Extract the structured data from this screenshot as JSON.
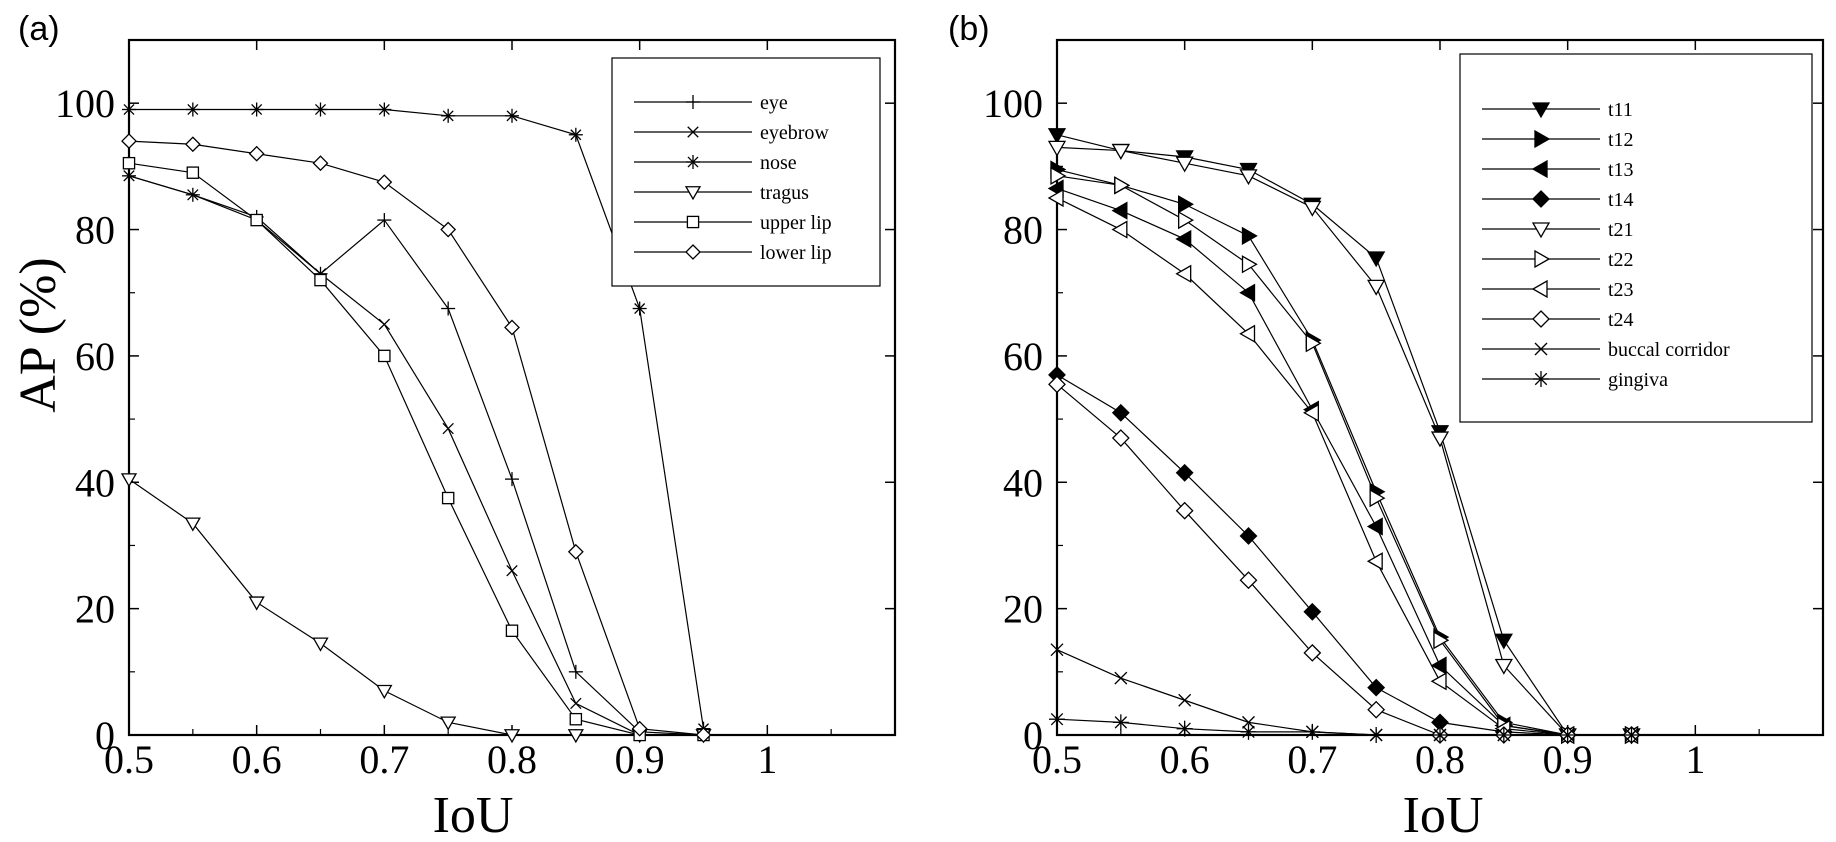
{
  "chart_data": [
    {
      "type": "line",
      "panel_label": "(a)",
      "xlabel": "IoU",
      "ylabel": "AP (%)",
      "xlim": [
        0.5,
        1.1
      ],
      "ylim": [
        0,
        110
      ],
      "xticks": [
        0.5,
        0.6,
        0.7,
        0.8,
        0.9,
        1
      ],
      "xtick_labels": [
        "0.5",
        "0.6",
        "0.7",
        "0.8",
        "0.9",
        "1"
      ],
      "yticks": [
        0,
        20,
        40,
        60,
        80,
        100
      ],
      "ytick_labels": [
        "0",
        "20",
        "40",
        "60",
        "80",
        "100"
      ],
      "legend_position": "top-right",
      "x": [
        0.5,
        0.55,
        0.6,
        0.65,
        0.7,
        0.75,
        0.8,
        0.85,
        0.9,
        0.95
      ],
      "series": [
        {
          "name": "eye",
          "marker": "plus",
          "values": [
            88.5,
            85.5,
            82,
            73,
            81.5,
            67.5,
            40.5,
            10,
            0.5,
            0
          ]
        },
        {
          "name": "eyebrow",
          "marker": "x",
          "values": [
            88.5,
            85.5,
            81.5,
            73,
            65,
            48.5,
            26,
            5,
            0,
            0
          ]
        },
        {
          "name": "nose",
          "marker": "asterisk",
          "values": [
            99,
            99,
            99,
            99,
            99,
            98,
            98,
            95,
            67.5,
            1
          ]
        },
        {
          "name": "tragus",
          "marker": "triangle-down-open",
          "values": [
            40.5,
            33.5,
            21,
            14.5,
            7,
            2,
            0,
            0,
            0,
            0
          ]
        },
        {
          "name": "upper lip",
          "marker": "square-open",
          "values": [
            90.5,
            89,
            81.5,
            72,
            60,
            37.5,
            16.5,
            2.5,
            0,
            0
          ]
        },
        {
          "name": "lower lip",
          "marker": "diamond-open",
          "values": [
            94,
            93.5,
            92,
            90.5,
            87.5,
            80,
            64.5,
            29,
            1,
            0
          ]
        }
      ]
    },
    {
      "type": "line",
      "panel_label": "(b)",
      "xlabel": "IoU",
      "ylabel": "",
      "xlim": [
        0.5,
        1.1
      ],
      "ylim": [
        0,
        110
      ],
      "xticks": [
        0.5,
        0.6,
        0.7,
        0.8,
        0.9,
        1
      ],
      "xtick_labels": [
        "0.5",
        "0.6",
        "0.7",
        "0.8",
        "0.9",
        "1"
      ],
      "yticks": [
        0,
        20,
        40,
        60,
        80,
        100
      ],
      "ytick_labels": [
        "0",
        "20",
        "40",
        "60",
        "80",
        "100"
      ],
      "legend_position": "top-right",
      "x": [
        0.5,
        0.55,
        0.6,
        0.65,
        0.7,
        0.75,
        0.8,
        0.85,
        0.9,
        0.95
      ],
      "series": [
        {
          "name": "t11",
          "marker": "triangle-down-filled",
          "values": [
            95,
            92.5,
            91.5,
            89.5,
            84,
            75.5,
            48,
            15,
            0,
            0
          ]
        },
        {
          "name": "t12",
          "marker": "triangle-right-filled",
          "values": [
            89.5,
            87,
            84,
            79,
            62.5,
            38.5,
            15.5,
            2,
            0,
            0
          ]
        },
        {
          "name": "t13",
          "marker": "triangle-left-filled",
          "values": [
            86.5,
            83,
            78.5,
            70,
            51.5,
            33,
            11,
            1.5,
            0,
            0
          ]
        },
        {
          "name": "t14",
          "marker": "diamond-filled",
          "values": [
            57,
            51,
            41.5,
            31.5,
            19.5,
            7.5,
            2,
            0.5,
            0,
            0
          ]
        },
        {
          "name": "t21",
          "marker": "triangle-down-open",
          "values": [
            93,
            92.5,
            90.5,
            88.5,
            83.5,
            71,
            47,
            11,
            0,
            0
          ]
        },
        {
          "name": "t22",
          "marker": "triangle-right-open",
          "values": [
            88.5,
            87,
            81.5,
            74.5,
            62,
            37.5,
            15,
            1.5,
            0,
            0
          ]
        },
        {
          "name": "t23",
          "marker": "triangle-left-open",
          "values": [
            85,
            80,
            73,
            63.5,
            51,
            27.5,
            8.5,
            1,
            0,
            0
          ]
        },
        {
          "name": "t24",
          "marker": "diamond-open",
          "values": [
            55.5,
            47,
            35.5,
            24.5,
            13,
            4,
            0,
            0,
            0,
            0
          ]
        },
        {
          "name": "buccal corridor",
          "marker": "x",
          "values": [
            13.5,
            9,
            5.5,
            2,
            0.5,
            0,
            0,
            0,
            0,
            0
          ]
        },
        {
          "name": "gingiva",
          "marker": "asterisk",
          "values": [
            2.5,
            2,
            1,
            0.5,
            0.5,
            0,
            0,
            0,
            0,
            0
          ]
        }
      ]
    }
  ]
}
